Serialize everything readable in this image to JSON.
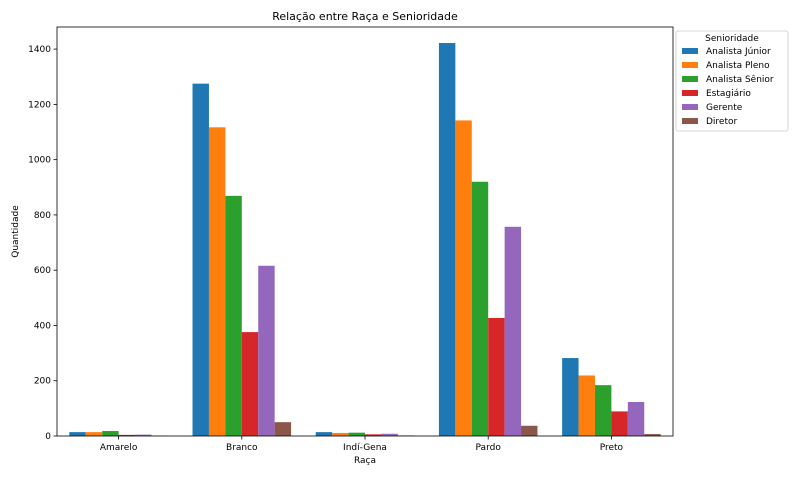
{
  "chart_data": {
    "type": "bar",
    "title": "Relação entre Raça e Senioridade",
    "xlabel": "Raça",
    "ylabel": "Quantidade",
    "categories": [
      "Amarelo",
      "Branco",
      "Indí-Gena",
      "Pardo",
      "Preto"
    ],
    "ylim": [
      0,
      1480
    ],
    "yticks": [
      0,
      200,
      400,
      600,
      800,
      1000,
      1200,
      1400
    ],
    "legend_title": "Senioridade",
    "legend_position": "outside-right-top",
    "grid": false,
    "series": [
      {
        "name": "Analista Júnior",
        "color": "#1f77b4",
        "values": [
          14,
          1275,
          14,
          1422,
          282
        ]
      },
      {
        "name": "Analista Pleno",
        "color": "#ff7f0e",
        "values": [
          14,
          1117,
          11,
          1142,
          219
        ]
      },
      {
        "name": "Analista Sênior",
        "color": "#2ca02c",
        "values": [
          18,
          869,
          12,
          920,
          184
        ]
      },
      {
        "name": "Estagiário",
        "color": "#d62728",
        "values": [
          4,
          376,
          6,
          427,
          89
        ]
      },
      {
        "name": "Gerente",
        "color": "#9467bd",
        "values": [
          5,
          616,
          8,
          757,
          123
        ]
      },
      {
        "name": "Diretor",
        "color": "#8c564b",
        "values": [
          1,
          50,
          2,
          37,
          7
        ]
      }
    ]
  }
}
